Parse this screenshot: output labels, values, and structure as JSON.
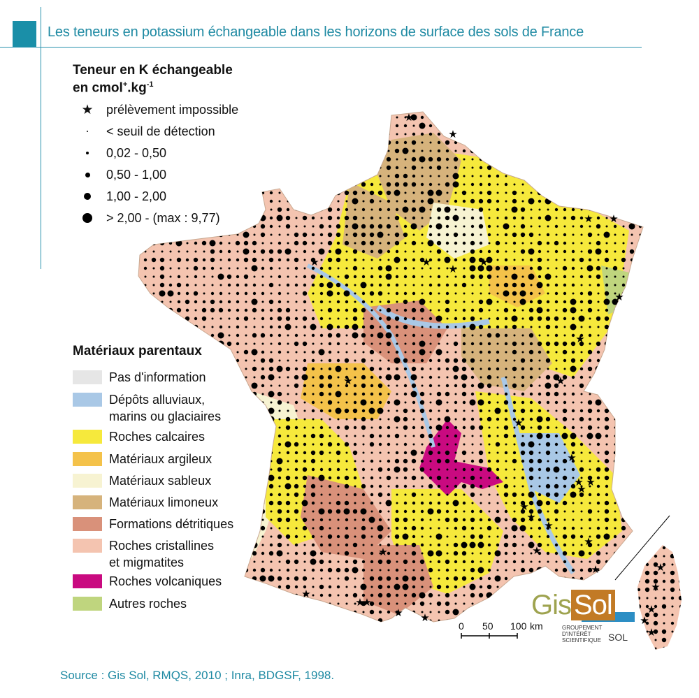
{
  "title": "Les teneurs en potassium échangeable dans les horizons de surface des sols de France",
  "symbols_legend": {
    "title_line1": "Teneur en K échangeable",
    "title_line2": "en cmol",
    "title_sup1": "+",
    "title_mid": ".kg",
    "title_sup2": "-1",
    "items": [
      {
        "label": "prélèvement impossible",
        "icon": "star-icon"
      },
      {
        "label": "< seuil de détection",
        "icon": "dot-tiny-icon"
      },
      {
        "label": "0,02 - 0,50",
        "icon": "dot-small-icon"
      },
      {
        "label": "0,50 - 1,00",
        "icon": "dot-medium-icon"
      },
      {
        "label": "1,00 - 2,00",
        "icon": "dot-large-icon"
      },
      {
        "label": "> 2,00 - (max : 9,77)",
        "icon": "dot-xlarge-icon"
      }
    ]
  },
  "materials_legend": {
    "title": "Matériaux parentaux",
    "items": [
      {
        "label": "Pas d'information",
        "color": "#e6e6e6"
      },
      {
        "label": "Dépôts alluviaux,",
        "label2": "marins ou glaciaires",
        "color": "#a9c8e6"
      },
      {
        "label": "Roches calcaires",
        "color": "#f6e93c"
      },
      {
        "label": "Matériaux argileux",
        "color": "#f4c24a"
      },
      {
        "label": "Matériaux sableux",
        "color": "#f7f3d2"
      },
      {
        "label": "Matériaux limoneux",
        "color": "#d6b37c"
      },
      {
        "label": "Formations détritiques",
        "color": "#d9917a"
      },
      {
        "label": "Roches cristallines",
        "label2": "et migmatites",
        "color": "#f4c4b0"
      },
      {
        "label": "Roches volcaniques",
        "color": "#c90a80"
      },
      {
        "label": "Autres roches",
        "color": "#bfd57e"
      }
    ]
  },
  "scale": {
    "labels": [
      "0",
      "50",
      "100"
    ],
    "unit": "km"
  },
  "logo": {
    "gis": "Gis",
    "sol": "Sol",
    "line1": "GROUPEMENT",
    "line2": "D'INTÉRÊT",
    "line3": "SCIENTIFIQUE",
    "sol2": "SOL"
  },
  "source": "Source : Gis Sol, RMQS, 2010 ; Inra, BDGSF, 1998.",
  "colors": {
    "accent": "#1f8aa3"
  }
}
